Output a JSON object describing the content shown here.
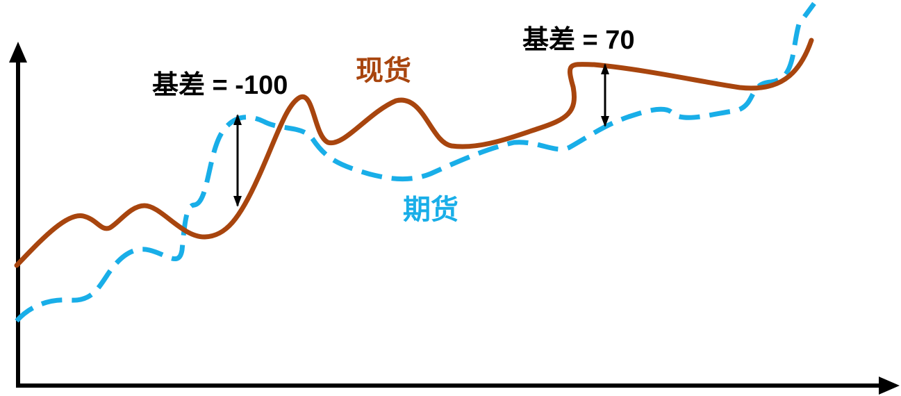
{
  "colors": {
    "spot": "#A8450E",
    "futures": "#19AEE8",
    "basis_arrow": "#000000",
    "text": "#000000",
    "axes": "#000000"
  },
  "labels": {
    "spot": "现货",
    "futures": "期货",
    "basis_left": "基差 = -100",
    "basis_right": "基差 = 70"
  },
  "chart_data": {
    "type": "line",
    "series": [
      {
        "name": "现货",
        "style": "solid"
      },
      {
        "name": "期货",
        "style": "dashed"
      }
    ],
    "annotations": [
      {
        "text": "基差 = -100",
        "basis": -100
      },
      {
        "text": "基差 = 70",
        "basis": 70
      }
    ]
  }
}
